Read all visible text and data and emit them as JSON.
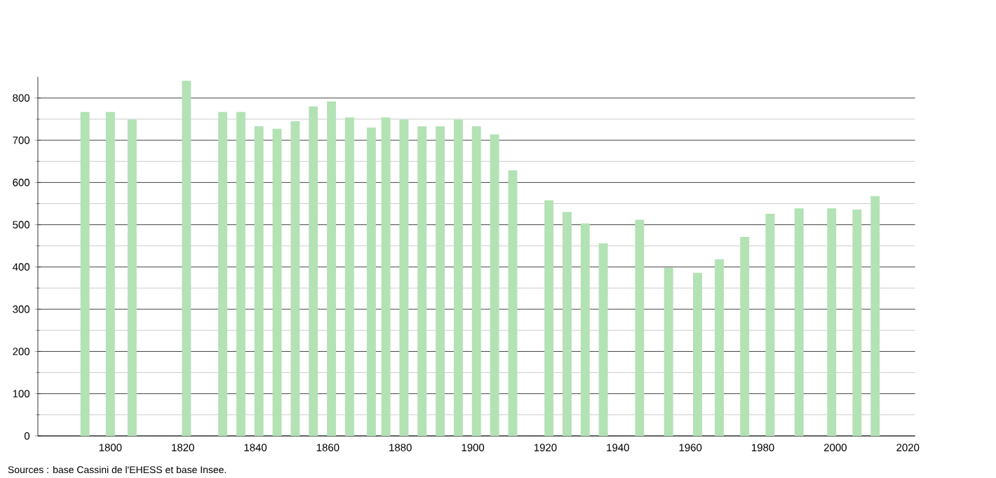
{
  "chart_data": {
    "type": "bar",
    "x": [
      1793,
      1800,
      1806,
      1821,
      1831,
      1836,
      1841,
      1846,
      1851,
      1856,
      1861,
      1866,
      1872,
      1876,
      1881,
      1886,
      1891,
      1896,
      1901,
      1906,
      1911,
      1921,
      1926,
      1931,
      1936,
      1946,
      1954,
      1962,
      1968,
      1975,
      1982,
      1990,
      1999,
      2006,
      2011
    ],
    "values": [
      767,
      767,
      749,
      841,
      767,
      767,
      733,
      727,
      745,
      780,
      792,
      754,
      730,
      754,
      749,
      733,
      733,
      749,
      733,
      714,
      629,
      558,
      530,
      503,
      456,
      512,
      398,
      386,
      418,
      471,
      526,
      539,
      539,
      536,
      568
    ],
    "color": "#b3e2b5",
    "xlim": [
      1780,
      2022
    ],
    "xticks": [
      1800,
      1820,
      1840,
      1860,
      1880,
      1900,
      1920,
      1940,
      1960,
      1980,
      2000,
      2020
    ],
    "ylim": [
      0,
      850
    ],
    "yticks": [
      0,
      100,
      200,
      300,
      400,
      500,
      600,
      700,
      800
    ],
    "grid": "y",
    "annotations": [
      "Sources : base Cassini de l'EHESS et base Insee."
    ]
  }
}
